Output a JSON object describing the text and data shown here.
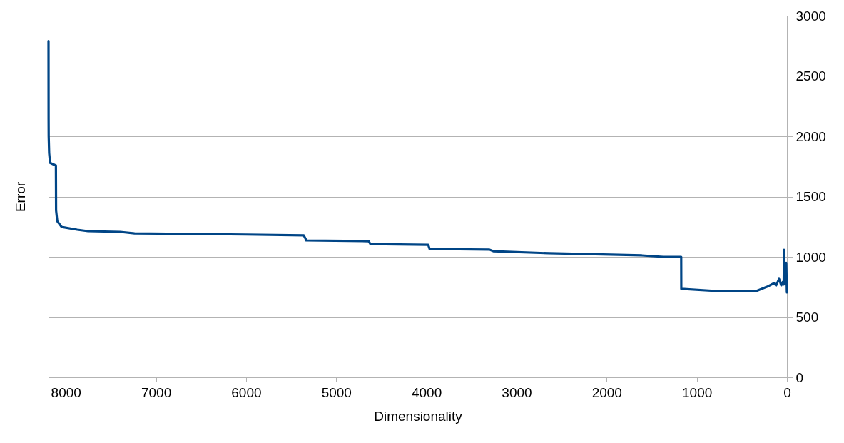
{
  "chart_data": {
    "type": "line",
    "xlabel": "Dimensionality",
    "ylabel": "Error",
    "xlim": [
      8192,
      0
    ],
    "xticks": [
      8000,
      7000,
      6000,
      5000,
      4000,
      3000,
      2000,
      1000,
      0
    ],
    "ylim": [
      0,
      3000
    ],
    "yticks": [
      0,
      500,
      1000,
      1500,
      2000,
      2500,
      3000
    ],
    "grid": "y",
    "line_style": "solid",
    "series": [
      {
        "color": "#004586",
        "x": [
          8192,
          8191,
          8190,
          8185,
          8175,
          8110,
          8108,
          8100,
          8095,
          8047,
          7873,
          7754,
          7397,
          7238,
          6000,
          5360,
          5340,
          5336,
          4640,
          4620,
          3980,
          3964,
          3300,
          3258,
          2640,
          1609,
          1372,
          1173,
          1172,
          777,
          341,
          222,
          143,
          120,
          87,
          63,
          48,
          36,
          32,
          28,
          16,
          8,
          0
        ],
        "values": [
          2790,
          2150,
          2000,
          1860,
          1780,
          1757,
          1385,
          1330,
          1296,
          1248,
          1225,
          1213,
          1207,
          1195,
          1185,
          1178,
          1150,
          1136,
          1130,
          1106,
          1100,
          1065,
          1060,
          1047,
          1030,
          1012,
          1000,
          1000,
          734,
          716,
          716,
          751,
          781,
          763,
          817,
          763,
          790,
          770,
          1059,
          900,
          780,
          950,
          704
        ]
      }
    ]
  }
}
